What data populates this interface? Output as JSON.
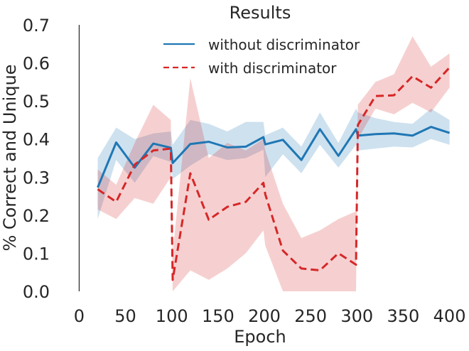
{
  "chart_data": {
    "type": "line",
    "title": "Results",
    "xlabel": "Epoch",
    "ylabel": "% Correct and Unique",
    "xlim": [
      -8,
      408
    ],
    "ylim": [
      0.0,
      0.7
    ],
    "xticks": [
      0,
      50,
      100,
      150,
      200,
      250,
      300,
      350,
      400
    ],
    "yticks": [
      0.0,
      0.1,
      0.2,
      0.3,
      0.4,
      0.5,
      0.6,
      0.7
    ],
    "grid": false,
    "legend_position": "top-center",
    "series": [
      {
        "name": "without discriminator",
        "color": "#1f77b4",
        "linestyle": "solid",
        "x": [
          20,
          40,
          60,
          80,
          99,
          101,
          120,
          140,
          160,
          180,
          199,
          201,
          220,
          240,
          260,
          280,
          299,
          301,
          320,
          340,
          360,
          380,
          400
        ],
        "y": [
          0.273,
          0.391,
          0.325,
          0.388,
          0.377,
          0.337,
          0.387,
          0.393,
          0.378,
          0.38,
          0.405,
          0.386,
          0.398,
          0.345,
          0.426,
          0.356,
          0.426,
          0.409,
          0.413,
          0.415,
          0.409,
          0.432,
          0.416
        ],
        "band_lower": [
          0.19,
          0.345,
          0.285,
          0.355,
          0.34,
          0.295,
          0.33,
          0.36,
          0.345,
          0.35,
          0.372,
          0.3,
          0.36,
          0.31,
          0.385,
          0.325,
          0.385,
          0.37,
          0.375,
          0.38,
          0.378,
          0.4,
          0.385
        ],
        "band_upper": [
          0.35,
          0.43,
          0.4,
          0.415,
          0.42,
          0.385,
          0.45,
          0.44,
          0.42,
          0.445,
          0.445,
          0.41,
          0.43,
          0.38,
          0.47,
          0.39,
          0.48,
          0.47,
          0.455,
          0.445,
          0.44,
          0.48,
          0.45
        ]
      },
      {
        "name": "with discriminator",
        "color": "#d62728",
        "linestyle": "dashed",
        "x": [
          20,
          40,
          60,
          80,
          99,
          101,
          120,
          140,
          160,
          180,
          199,
          201,
          220,
          240,
          260,
          280,
          299,
          301,
          320,
          340,
          360,
          380,
          400
        ],
        "y": [
          0.268,
          0.235,
          0.333,
          0.37,
          0.375,
          0.03,
          0.31,
          0.188,
          0.222,
          0.235,
          0.285,
          0.255,
          0.107,
          0.06,
          0.055,
          0.1,
          0.07,
          0.437,
          0.513,
          0.515,
          0.565,
          0.535,
          0.588
        ],
        "band_lower": [
          0.215,
          0.19,
          0.245,
          0.23,
          0.3,
          0.0,
          0.055,
          0.03,
          0.06,
          0.1,
          0.16,
          0.12,
          0.0,
          0.0,
          0.0,
          0.0,
          0.0,
          0.4,
          0.48,
          0.465,
          0.495,
          0.47,
          0.535
        ],
        "band_upper": [
          0.32,
          0.28,
          0.39,
          0.49,
          0.45,
          0.1,
          0.56,
          0.35,
          0.39,
          0.37,
          0.4,
          0.37,
          0.23,
          0.14,
          0.16,
          0.19,
          0.21,
          0.49,
          0.55,
          0.57,
          0.67,
          0.59,
          0.625
        ]
      }
    ]
  }
}
